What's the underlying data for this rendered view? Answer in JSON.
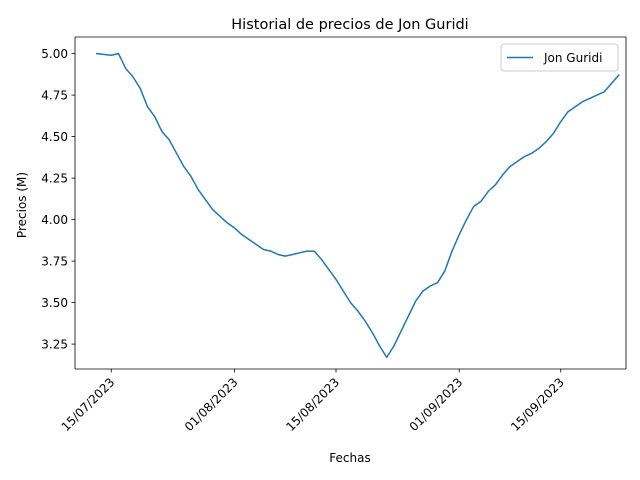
{
  "chart_data": {
    "type": "line",
    "title": "Historial de precios de Jon Guridi",
    "xlabel": "Fechas",
    "ylabel": "Precios (M)",
    "x_ticks": [
      "15/07/2023",
      "01/08/2023",
      "15/08/2023",
      "01/09/2023",
      "15/09/2023"
    ],
    "y_ticks": [
      "3.25",
      "3.50",
      "3.75",
      "4.00",
      "4.25",
      "4.50",
      "4.75",
      "5.00"
    ],
    "ylim": [
      3.1,
      5.1
    ],
    "xlim": [
      "2023-07-10",
      "2023-09-24"
    ],
    "legend_position": "top-right",
    "grid": false,
    "color": "#1f77b4",
    "series": [
      {
        "name": "Jon Guridi",
        "x": [
          "2023-07-13",
          "2023-07-15",
          "2023-07-16",
          "2023-07-17",
          "2023-07-18",
          "2023-07-19",
          "2023-07-20",
          "2023-07-21",
          "2023-07-22",
          "2023-07-23",
          "2023-07-24",
          "2023-07-25",
          "2023-07-26",
          "2023-07-27",
          "2023-07-28",
          "2023-07-29",
          "2023-07-30",
          "2023-07-31",
          "2023-08-01",
          "2023-08-02",
          "2023-08-03",
          "2023-08-04",
          "2023-08-05",
          "2023-08-06",
          "2023-08-07",
          "2023-08-08",
          "2023-08-09",
          "2023-08-10",
          "2023-08-11",
          "2023-08-12",
          "2023-08-13",
          "2023-08-14",
          "2023-08-15",
          "2023-08-16",
          "2023-08-17",
          "2023-08-18",
          "2023-08-19",
          "2023-08-20",
          "2023-08-21",
          "2023-08-22",
          "2023-08-23",
          "2023-08-24",
          "2023-08-25",
          "2023-08-26",
          "2023-08-27",
          "2023-08-28",
          "2023-08-29",
          "2023-08-30",
          "2023-08-31",
          "2023-09-01",
          "2023-09-02",
          "2023-09-03",
          "2023-09-04",
          "2023-09-05",
          "2023-09-06",
          "2023-09-07",
          "2023-09-08",
          "2023-09-09",
          "2023-09-10",
          "2023-09-11",
          "2023-09-12",
          "2023-09-13",
          "2023-09-14",
          "2023-09-15",
          "2023-09-16",
          "2023-09-17",
          "2023-09-18",
          "2023-09-19",
          "2023-09-20",
          "2023-09-21",
          "2023-09-22",
          "2023-09-23"
        ],
        "y": [
          5.0,
          4.99,
          5.0,
          4.91,
          4.86,
          4.79,
          4.68,
          4.62,
          4.53,
          4.48,
          4.4,
          4.32,
          4.26,
          4.18,
          4.12,
          4.06,
          4.02,
          3.98,
          3.95,
          3.91,
          3.88,
          3.85,
          3.82,
          3.81,
          3.79,
          3.78,
          3.79,
          3.8,
          3.81,
          3.81,
          3.76,
          3.7,
          3.64,
          3.57,
          3.5,
          3.45,
          3.39,
          3.32,
          3.24,
          3.17,
          3.24,
          3.33,
          3.42,
          3.51,
          3.57,
          3.6,
          3.62,
          3.69,
          3.81,
          3.91,
          4.0,
          4.08,
          4.11,
          4.17,
          4.21,
          4.27,
          4.32,
          4.35,
          4.38,
          4.4,
          4.43,
          4.47,
          4.52,
          4.59,
          4.65,
          4.68,
          4.71,
          4.73,
          4.75,
          4.77,
          4.82,
          4.87
        ]
      }
    ]
  }
}
